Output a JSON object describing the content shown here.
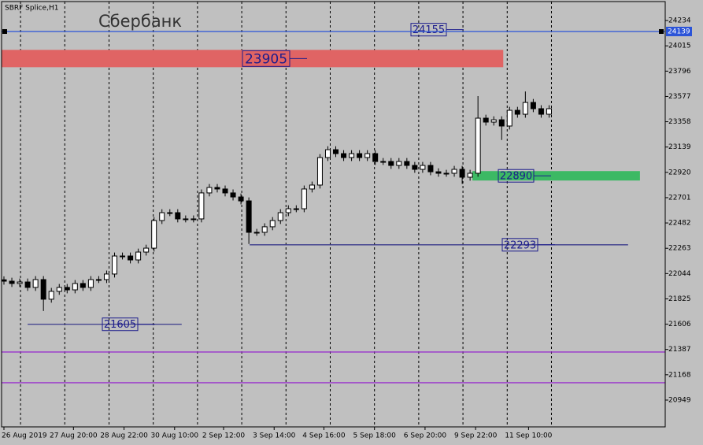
{
  "chart_data": {
    "type": "candlestick",
    "title": "Сбербанк",
    "subtitle": "SBRF Splice,H1",
    "open": [
      21990,
      21978,
      21958,
      21971,
      21924,
      21992,
      21822,
      21890,
      21924,
      21903,
      21958,
      21924,
      21992,
      21992,
      22040,
      22196,
      22196,
      22162,
      22230,
      22264,
      22503,
      22571,
      22571,
      22517,
      22517,
      22517,
      22742,
      22789,
      22776,
      22742,
      22707,
      22673,
      22401,
      22401,
      22449,
      22503,
      22571,
      22605,
      22605,
      22776,
      22810,
      23048,
      23116,
      23082,
      23048,
      23082,
      23048,
      23082,
      23014,
      23014,
      22980,
      23014,
      22980,
      22946,
      22980,
      22925,
      22912,
      22912,
      22946,
      22878,
      22912,
      23389,
      23355,
      23375,
      23321,
      23457,
      23423,
      23525,
      23471,
      23423
    ],
    "high": [
      22020,
      22008,
      22001,
      22001,
      22022,
      22022,
      21920,
      21954,
      21954,
      21988,
      21988,
      22022,
      22022,
      22070,
      22226,
      22226,
      22226,
      22260,
      22294,
      22533,
      22601,
      22601,
      22601,
      22547,
      22547,
      22772,
      22819,
      22819,
      22806,
      22772,
      22737,
      22703,
      22431,
      22479,
      22533,
      22601,
      22635,
      22635,
      22806,
      22840,
      23078,
      23146,
      23146,
      23112,
      23112,
      23112,
      23112,
      23112,
      23044,
      23044,
      23044,
      23044,
      23010,
      23010,
      23010,
      22955,
      22942,
      22976,
      22976,
      22942,
      23580,
      23419,
      23405,
      23405,
      23487,
      23487,
      23620,
      23555,
      23501,
      23501
    ],
    "low": [
      21948,
      21928,
      21928,
      21894,
      21894,
      21720,
      21792,
      21860,
      21873,
      21873,
      21894,
      21894,
      21962,
      21962,
      22010,
      22166,
      22132,
      22132,
      22200,
      22234,
      22473,
      22541,
      22487,
      22487,
      22487,
      22487,
      22712,
      22746,
      22712,
      22677,
      22643,
      22300,
      22371,
      22371,
      22419,
      22473,
      22541,
      22575,
      22575,
      22746,
      22780,
      23018,
      23052,
      23018,
      23018,
      23018,
      23018,
      22984,
      22984,
      22950,
      22950,
      22950,
      22916,
      22916,
      22895,
      22882,
      22882,
      22882,
      22820,
      22848,
      22882,
      23325,
      23325,
      23200,
      23291,
      23393,
      23393,
      23441,
      23393,
      23393
    ],
    "close": [
      21978,
      21958,
      21971,
      21924,
      21992,
      21822,
      21890,
      21924,
      21903,
      21958,
      21924,
      21992,
      21992,
      22040,
      22196,
      22196,
      22162,
      22230,
      22264,
      22503,
      22571,
      22571,
      22517,
      22517,
      22517,
      22742,
      22789,
      22776,
      22742,
      22707,
      22673,
      22401,
      22401,
      22449,
      22503,
      22571,
      22605,
      22605,
      22776,
      22810,
      23048,
      23116,
      23082,
      23048,
      23082,
      23048,
      23082,
      23014,
      23014,
      22980,
      23014,
      22980,
      22946,
      22980,
      22925,
      22912,
      22912,
      22946,
      22878,
      22912,
      23389,
      23355,
      23375,
      23321,
      23457,
      23423,
      23525,
      23471,
      23423,
      23471
    ],
    "color": "#000000",
    "xlim": [
      -0.3,
      83.7
    ],
    "xticks": [
      {
        "value": 0,
        "label": "26 Aug 2019"
      },
      {
        "value": 8.8,
        "label": "27 Aug 20:00"
      },
      {
        "value": 15.2,
        "label": "28 Aug 22:00"
      },
      {
        "value": 21.6,
        "label": "30 Aug 10:00"
      },
      {
        "value": 27.8,
        "label": "2 Sep 12:00"
      },
      {
        "value": 34.2,
        "label": "3 Sep 14:00"
      },
      {
        "value": 40.5,
        "label": "4 Sep 16:00"
      },
      {
        "value": 46.9,
        "label": "5 Sep 18:00"
      },
      {
        "value": 53.3,
        "label": "6 Sep 20:00"
      },
      {
        "value": 59.7,
        "label": "9 Sep 22:00"
      },
      {
        "value": 66.4,
        "label": "11 Sep 10:00"
      }
    ],
    "xgrid": [
      2.1,
      7.7,
      13.3,
      18.9,
      24.5,
      30.1,
      35.7,
      41.3,
      46.9,
      52.5,
      58.1,
      63.7,
      69.3
    ],
    "ylim": [
      20717,
      24398
    ],
    "yticks": [
      24234,
      24015,
      23796,
      23577,
      23358,
      23139,
      22920,
      22701,
      22482,
      22263,
      22044,
      21825,
      21606,
      21387,
      21168,
      20949
    ],
    "last_price": {
      "value": 24139,
      "color": "#2b54d8"
    },
    "levels": [
      {
        "value": 24155,
        "color": "#1c1c8c",
        "style": "label"
      },
      {
        "value": 23905,
        "color": "#e06464",
        "style": "zone",
        "x": [
          -0.3,
          63.2
        ]
      },
      {
        "value": 22890,
        "color": "#3cb964",
        "style": "zone",
        "x": [
          59.3,
          80.5
        ]
      },
      {
        "value": 22293,
        "color": "#3a3a8c",
        "style": "line",
        "x": [
          31.1,
          79
        ]
      },
      {
        "value": 21605,
        "color": "#3a3a8c",
        "style": "line",
        "x": [
          3,
          22.5
        ]
      },
      {
        "value": 21365,
        "color": "#9932cc",
        "style": "line"
      },
      {
        "value": 21099,
        "color": "#9932cc",
        "style": "line"
      }
    ]
  }
}
